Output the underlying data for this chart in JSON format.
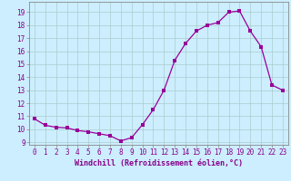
{
  "x": [
    0,
    1,
    2,
    3,
    4,
    5,
    6,
    7,
    8,
    9,
    10,
    11,
    12,
    13,
    14,
    15,
    16,
    17,
    18,
    19,
    20,
    21,
    22,
    23
  ],
  "y": [
    10.8,
    10.3,
    10.15,
    10.1,
    9.9,
    9.8,
    9.65,
    9.5,
    9.1,
    9.35,
    10.35,
    11.5,
    13.0,
    15.3,
    16.6,
    17.55,
    18.0,
    18.2,
    19.0,
    19.1,
    17.55,
    16.35,
    13.4,
    13.0
  ],
  "line_color": "#990099",
  "marker": "s",
  "marker_size": 2.2,
  "bg_color": "#cceeff",
  "grid_color": "#aacccc",
  "xlabel": "Windchill (Refroidissement éolien,°C)",
  "ylabel": "",
  "title": "",
  "xlim": [
    -0.5,
    23.5
  ],
  "ylim": [
    8.8,
    19.8
  ],
  "yticks": [
    9,
    10,
    11,
    12,
    13,
    14,
    15,
    16,
    17,
    18,
    19
  ],
  "xticks": [
    0,
    1,
    2,
    3,
    4,
    5,
    6,
    7,
    8,
    9,
    10,
    11,
    12,
    13,
    14,
    15,
    16,
    17,
    18,
    19,
    20,
    21,
    22,
    23
  ],
  "xlabel_fontsize": 6.0,
  "tick_fontsize": 5.5,
  "tick_color": "#880088",
  "axis_color": "#888888",
  "spine_color": "#888888"
}
